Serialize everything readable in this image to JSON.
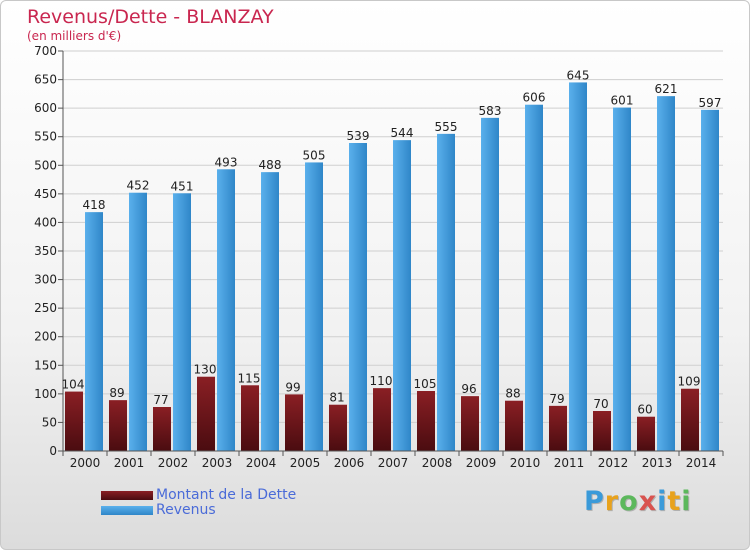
{
  "title": "Revenus/Dette - BLANZAY",
  "subtitle": "(en milliers d'€)",
  "logo_letters": [
    {
      "ch": "P",
      "color": "#3a9ad9"
    },
    {
      "ch": "r",
      "color": "#e8a21c"
    },
    {
      "ch": "o",
      "color": "#5cb85c"
    },
    {
      "ch": "x",
      "color": "#d9534f"
    },
    {
      "ch": "i",
      "color": "#3a9ad9"
    },
    {
      "ch": "t",
      "color": "#e8a21c"
    },
    {
      "ch": "i",
      "color": "#5cb85c"
    }
  ],
  "colors": {
    "debt_top": "#8a1f24",
    "debt_bottom": "#4a0c10",
    "revenue_light": "#5ab0ec",
    "revenue_dark": "#2f86c8",
    "grid": "#cfcfcf",
    "axis_text": "#222222"
  },
  "chart_data": {
    "type": "bar",
    "categories": [
      "2000",
      "2001",
      "2002",
      "2003",
      "2004",
      "2005",
      "2006",
      "2007",
      "2008",
      "2009",
      "2010",
      "2011",
      "2012",
      "2013",
      "2014"
    ],
    "series": [
      {
        "name": "Montant de la Dette",
        "values": [
          104,
          89,
          77,
          130,
          115,
          99,
          81,
          110,
          105,
          96,
          88,
          79,
          70,
          60,
          109
        ]
      },
      {
        "name": "Revenus",
        "values": [
          418,
          452,
          451,
          493,
          488,
          505,
          539,
          544,
          555,
          583,
          606,
          645,
          601,
          621,
          597
        ]
      }
    ],
    "ylim": [
      0,
      700
    ],
    "yticks": [
      0,
      50,
      100,
      150,
      200,
      250,
      300,
      350,
      400,
      450,
      500,
      550,
      600,
      650,
      700
    ],
    "grid": true,
    "legend_position": "bottom-left"
  }
}
